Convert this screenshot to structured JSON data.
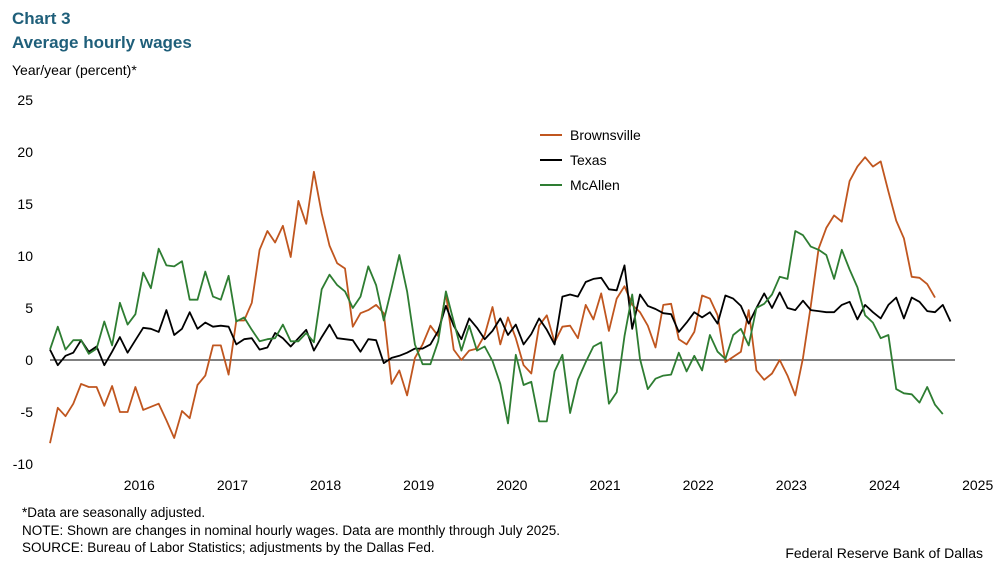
{
  "header": {
    "chart_number": "Chart 3",
    "title": "Average hourly wages",
    "y_axis_label": "Year/year  (percent)*"
  },
  "footer": {
    "note1": "*Data are seasonally adjusted.",
    "note2": "NOTE: Shown are changes in nominal hourly wages. Data are monthly through July 2025.",
    "source": "SOURCE: Bureau of Labor Statistics; adjustments by the Dallas Fed.",
    "credit": "Federal Reserve Bank of Dallas"
  },
  "chart_data": {
    "type": "line",
    "title": "Average hourly wages",
    "ylabel": "Year/year  (percent)*",
    "xlabel": "",
    "ylim": [
      -10,
      25
    ],
    "yticks": [
      -10,
      -5,
      0,
      5,
      10,
      15,
      20,
      25
    ],
    "xticks": [
      "2016",
      "2017",
      "2018",
      "2019",
      "2020",
      "2021",
      "2022",
      "2023",
      "2024",
      "2025"
    ],
    "start": "2015-07",
    "end": "2025-07",
    "legend_position": "top-right",
    "colors": {
      "Brownsville": "#c0561f",
      "Texas": "#000000",
      "McAllen": "#2e7d32"
    },
    "series": [
      {
        "name": "Brownsville",
        "values": [
          -8,
          -4.6,
          -5.4,
          -4.2,
          -2.3,
          -2.6,
          -2.6,
          -4.4,
          -2.5,
          -5,
          -5,
          -2.6,
          -4.8,
          -4.5,
          -4.2,
          -5.8,
          -7.5,
          -4.9,
          -5.6,
          -2.4,
          -1.5,
          1.4,
          1.4,
          -1.4,
          3.8,
          3.8,
          5.5,
          10.6,
          12.4,
          11.3,
          12.9,
          9.9,
          15.3,
          13.1,
          18.1,
          14.1,
          11,
          9.3,
          8.8,
          3.2,
          4.5,
          4.8,
          5.3,
          4.5,
          -2.3,
          -1,
          -3.4,
          0.2,
          1.5,
          3.3,
          2.3,
          6.4,
          1,
          0,
          0.9,
          1.1,
          2.4,
          5.1,
          1.5,
          4.1,
          2.1,
          -0.5,
          -1.3,
          3.3,
          4.3,
          1.7,
          3.2,
          3.3,
          2.1,
          5.3,
          3.9,
          6.4,
          2.8,
          5.9,
          7.1,
          5.3,
          4.6,
          3.3,
          1.2,
          5.3,
          5.4,
          2,
          1.5,
          2.7,
          6.2,
          5.9,
          4.3,
          -0.2,
          0.3,
          0.8,
          4.8,
          -1,
          -1.9,
          -1.3,
          0,
          -1.5,
          -3.4,
          0.2,
          5.2,
          10.7,
          12.7,
          13.9,
          13.3,
          17.2,
          18.6,
          19.5,
          18.6,
          19.1,
          16.2,
          13.4,
          11.7,
          8,
          7.9,
          7.3,
          6
        ],
        "mark": "a"
      },
      {
        "name": "Texas",
        "values": [
          1,
          -0.5,
          0.4,
          0.7,
          1.9,
          0.8,
          1.3,
          -0.5,
          0.8,
          2.2,
          0.7,
          1.9,
          3.1,
          3,
          2.7,
          4.8,
          2.4,
          3,
          4.6,
          3,
          3.6,
          3.2,
          3.3,
          3.2,
          1.5,
          2,
          2.1,
          1,
          1.2,
          2.6,
          2.1,
          1.3,
          2.1,
          2.9,
          0.9,
          2.2,
          3.4,
          2.1,
          2,
          1.9,
          0.8,
          2,
          1.9,
          -0.3,
          0.2,
          0.4,
          0.7,
          1.1,
          1.1,
          1.5,
          2.8,
          5.2,
          3.3,
          2,
          4,
          3.1,
          2,
          2.8,
          4,
          2.4,
          3.4,
          1.5,
          2.5,
          4,
          2.9,
          1.5,
          6.1,
          6.3,
          6.1,
          7.5,
          7.8,
          7.9,
          6.8,
          6.7,
          9.1,
          3,
          6.3,
          5.2,
          4.9,
          4.5,
          4.4,
          2.7,
          3.6,
          4.6,
          4.1,
          4.6,
          3.5,
          6.2,
          5.9,
          5.2,
          3.5,
          5,
          6.4,
          5,
          6.5,
          5,
          4.8,
          5.7,
          4.8,
          4.7,
          4.6,
          4.6,
          5.3,
          5.6,
          3.9,
          5.3,
          4.6,
          4,
          5.3,
          6,
          4,
          6,
          5.6,
          4.7,
          4.6,
          5.3,
          3.7
        ],
        "mark": "b"
      },
      {
        "name": "McAllen",
        "values": [
          1,
          3.2,
          1,
          1.9,
          1.9,
          0.6,
          1.1,
          3.7,
          1.4,
          5.5,
          3.4,
          4.4,
          8.4,
          6.9,
          10.7,
          9.1,
          9,
          9.5,
          5.8,
          5.8,
          8.5,
          6.1,
          5.8,
          8.1,
          3.7,
          4.1,
          2.9,
          1.8,
          2,
          2.1,
          3.4,
          1.8,
          1.8,
          2.6,
          1.7,
          6.8,
          8.2,
          7.2,
          6.6,
          5,
          6.1,
          9,
          7.2,
          3.8,
          6.9,
          10.1,
          6.6,
          1.5,
          -0.4,
          -0.4,
          1.8,
          6.6,
          3.7,
          0.9,
          3.3,
          0.9,
          1.3,
          -0.1,
          -2.3,
          -6.1,
          0.5,
          -2.4,
          -2.1,
          -5.9,
          -5.9,
          -1.1,
          0.5,
          -5.1,
          -1.9,
          -0.2,
          1.3,
          1.7,
          -4.2,
          -3.1,
          2.3,
          6.3,
          0.1,
          -2.8,
          -1.8,
          -1.5,
          -1.4,
          0.7,
          -1.1,
          0.4,
          -1,
          2.4,
          0.8,
          0.1,
          2.4,
          3,
          1.4,
          5,
          5.4,
          6.3,
          8,
          7.8,
          12.4,
          12,
          10.9,
          10.6,
          10.1,
          7.8,
          10.6,
          8.7,
          7,
          4.3,
          3.6,
          2.1,
          2.4,
          -2.8,
          -3.2,
          -3.3,
          -4.1,
          -2.6,
          -4.3,
          -5.2
        ],
        "mark": "c"
      }
    ]
  }
}
